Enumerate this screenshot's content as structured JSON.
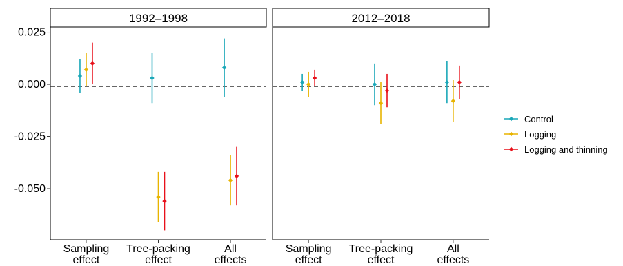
{
  "chart_data": {
    "type": "scatter",
    "subtype": "point-range with error bars, faceted",
    "legend_placement": "right",
    "grid": false,
    "reference_line": {
      "y": -0.001,
      "style": "dashed",
      "color": "#333333"
    },
    "ylim": [
      -0.0745,
      0.0275
    ],
    "yticks": [
      0.025,
      0.0,
      -0.025,
      -0.05
    ],
    "ytick_labels": [
      "0.025",
      "0.000",
      "-0.025",
      "-0.050"
    ],
    "categories": [
      "Sampling\neffect",
      "Tree-packing\neffect",
      "All\neffects"
    ],
    "series_styles": [
      {
        "name": "Control",
        "color": "#1AA7B8"
      },
      {
        "name": "Logging",
        "color": "#E8B400"
      },
      {
        "name": "Logging and thinning",
        "color": "#E8101A"
      }
    ],
    "panels": [
      {
        "title": "1992–1998",
        "series": [
          {
            "name": "Control",
            "points": [
              {
                "category": "Sampling\neffect",
                "y": 0.004,
                "low": -0.004,
                "high": 0.012
              },
              {
                "category": "Tree-packing\neffect",
                "y": 0.003,
                "low": -0.009,
                "high": 0.015
              },
              {
                "category": "All\neffects",
                "y": 0.008,
                "low": -0.006,
                "high": 0.022
              }
            ]
          },
          {
            "name": "Logging",
            "points": [
              {
                "category": "Sampling\neffect",
                "y": 0.007,
                "low": -0.001,
                "high": 0.015
              },
              {
                "category": "Tree-packing\neffect",
                "y": -0.054,
                "low": -0.066,
                "high": -0.042
              },
              {
                "category": "All\neffects",
                "y": -0.046,
                "low": -0.058,
                "high": -0.034
              }
            ]
          },
          {
            "name": "Logging and thinning",
            "points": [
              {
                "category": "Sampling\neffect",
                "y": 0.01,
                "low": 0.0,
                "high": 0.02
              },
              {
                "category": "Tree-packing\neffect",
                "y": -0.056,
                "low": -0.07,
                "high": -0.042
              },
              {
                "category": "All\neffects",
                "y": -0.044,
                "low": -0.058,
                "high": -0.03
              }
            ]
          }
        ]
      },
      {
        "title": "2012–2018",
        "series": [
          {
            "name": "Control",
            "points": [
              {
                "category": "Sampling\neffect",
                "y": 0.001,
                "low": -0.003,
                "high": 0.005
              },
              {
                "category": "Tree-packing\neffect",
                "y": 0.0,
                "low": -0.01,
                "high": 0.01
              },
              {
                "category": "All\neffects",
                "y": 0.001,
                "low": -0.009,
                "high": 0.011
              }
            ]
          },
          {
            "name": "Logging",
            "points": [
              {
                "category": "Sampling\neffect",
                "y": 0.0,
                "low": -0.006,
                "high": 0.006
              },
              {
                "category": "Tree-packing\neffect",
                "y": -0.009,
                "low": -0.019,
                "high": 0.001
              },
              {
                "category": "All\neffects",
                "y": -0.008,
                "low": -0.018,
                "high": 0.002
              }
            ]
          },
          {
            "name": "Logging and thinning",
            "points": [
              {
                "category": "Sampling\neffect",
                "y": 0.003,
                "low": -0.001,
                "high": 0.007
              },
              {
                "category": "Tree-packing\neffect",
                "y": -0.003,
                "low": -0.011,
                "high": 0.005
              },
              {
                "category": "All\neffects",
                "y": 0.001,
                "low": -0.007,
                "high": 0.009
              }
            ]
          }
        ]
      }
    ]
  }
}
